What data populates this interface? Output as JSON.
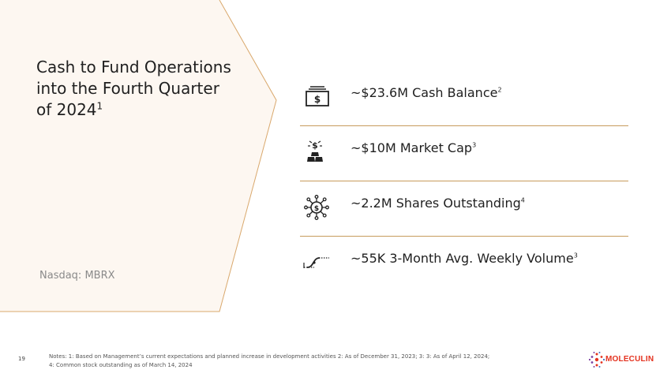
{
  "slide": {
    "heading_text": "Cash to Fund Operations into the Fourth Quarter of 2024",
    "heading_superscript": "1",
    "ticker": "Nasdaq:  MBRX",
    "page_number": "19",
    "notes_line1": "Notes: 1: Based on Management’s current expectations and planned increase in development activities 2: As of December 31, 2023; 3: 3: As of April 12, 2024;",
    "notes_line2": "4: Common stock outstanding as of March 14, 2024"
  },
  "metrics": [
    {
      "icon": "cash-icon",
      "label": "~$23.6M Cash Balance",
      "footnote": "2"
    },
    {
      "icon": "gold-bars-icon",
      "label": "~$10M Market Cap",
      "footnote": "3"
    },
    {
      "icon": "network-dollar-icon",
      "label": "~2.2M Shares Outstanding",
      "footnote": "4"
    },
    {
      "icon": "volume-curve-icon",
      "label": "~55K 3-Month Avg. Weekly Volume",
      "footnote": "3"
    }
  ],
  "logo": {
    "wordmark": "MOLECULIN",
    "color": "#e4321f"
  },
  "colors": {
    "accent_gold": "#c79b5c",
    "panel_fill": "#fdf7f1"
  }
}
